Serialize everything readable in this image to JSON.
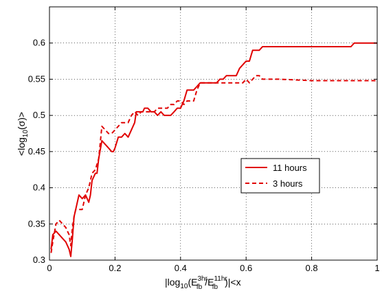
{
  "chart_data": {
    "type": "line",
    "xlabel": {
      "prefix": "|log",
      "sub1": "10",
      "open": "(E",
      "sup_num": "3hr",
      "sub_num": "fb",
      "slash": "/E",
      "sup_den": "11hr",
      "sub_den": "fb",
      "close": ")|<x"
    },
    "ylabel": {
      "prefix": "<log",
      "sub": "10",
      "rest": "(σ)>"
    },
    "xlim": [
      0,
      1
    ],
    "ylim": [
      0.3,
      0.65
    ],
    "xticks": [
      0,
      0.2,
      0.4,
      0.6,
      0.8,
      1
    ],
    "xtick_labels": [
      "0",
      "0.2",
      "0.4",
      "0.6",
      "0.8",
      "1"
    ],
    "yticks": [
      0.3,
      0.35,
      0.4,
      0.45,
      0.5,
      0.55,
      0.6
    ],
    "ytick_labels": [
      "0.3",
      "0.35",
      "0.4",
      "0.45",
      "0.5",
      "0.55",
      "0.6"
    ],
    "grid": true,
    "legend_position": "center-right",
    "series": [
      {
        "name": "11 hours",
        "style": "solid",
        "color": "#e00000",
        "x": [
          0.005,
          0.01,
          0.02,
          0.03,
          0.04,
          0.05,
          0.06,
          0.065,
          0.07,
          0.075,
          0.08,
          0.09,
          0.1,
          0.11,
          0.12,
          0.125,
          0.13,
          0.14,
          0.145,
          0.15,
          0.16,
          0.17,
          0.18,
          0.19,
          0.195,
          0.2,
          0.21,
          0.22,
          0.23,
          0.24,
          0.25,
          0.26,
          0.265,
          0.28,
          0.285,
          0.29,
          0.3,
          0.31,
          0.32,
          0.33,
          0.34,
          0.35,
          0.37,
          0.38,
          0.39,
          0.4,
          0.41,
          0.42,
          0.43,
          0.44,
          0.45,
          0.46,
          0.47,
          0.5,
          0.51,
          0.52,
          0.53,
          0.54,
          0.55,
          0.57,
          0.58,
          0.59,
          0.6,
          0.61,
          0.62,
          0.63,
          0.64,
          0.65,
          0.7,
          0.8,
          0.9,
          0.92,
          0.93,
          0.94,
          1.0
        ],
        "y": [
          0.315,
          0.335,
          0.34,
          0.335,
          0.33,
          0.325,
          0.315,
          0.305,
          0.33,
          0.36,
          0.37,
          0.39,
          0.385,
          0.39,
          0.38,
          0.39,
          0.41,
          0.42,
          0.42,
          0.44,
          0.465,
          0.46,
          0.455,
          0.45,
          0.45,
          0.455,
          0.47,
          0.47,
          0.475,
          0.47,
          0.48,
          0.49,
          0.505,
          0.505,
          0.505,
          0.51,
          0.51,
          0.505,
          0.505,
          0.5,
          0.505,
          0.5,
          0.5,
          0.505,
          0.51,
          0.51,
          0.52,
          0.535,
          0.535,
          0.535,
          0.54,
          0.545,
          0.545,
          0.545,
          0.545,
          0.55,
          0.55,
          0.555,
          0.555,
          0.555,
          0.565,
          0.57,
          0.575,
          0.575,
          0.59,
          0.59,
          0.59,
          0.595,
          0.595,
          0.595,
          0.595,
          0.595,
          0.6,
          0.6,
          0.6
        ]
      },
      {
        "name": "3 hours",
        "style": "dashed",
        "color": "#e00000",
        "x": [
          0.005,
          0.01,
          0.02,
          0.03,
          0.04,
          0.05,
          0.06,
          0.065,
          0.07,
          0.075,
          0.08,
          0.09,
          0.1,
          0.11,
          0.12,
          0.13,
          0.14,
          0.15,
          0.16,
          0.17,
          0.18,
          0.19,
          0.2,
          0.21,
          0.22,
          0.23,
          0.24,
          0.25,
          0.26,
          0.27,
          0.28,
          0.3,
          0.31,
          0.32,
          0.33,
          0.34,
          0.36,
          0.37,
          0.38,
          0.39,
          0.4,
          0.41,
          0.42,
          0.43,
          0.44,
          0.45,
          0.46,
          0.47,
          0.5,
          0.52,
          0.54,
          0.56,
          0.59,
          0.6,
          0.61,
          0.62,
          0.63,
          0.64,
          0.65,
          0.7,
          0.8,
          0.9,
          1.0
        ],
        "y": [
          0.31,
          0.325,
          0.35,
          0.355,
          0.35,
          0.345,
          0.335,
          0.32,
          0.345,
          0.36,
          0.37,
          0.37,
          0.37,
          0.39,
          0.4,
          0.42,
          0.425,
          0.44,
          0.485,
          0.48,
          0.475,
          0.475,
          0.48,
          0.485,
          0.49,
          0.49,
          0.49,
          0.5,
          0.505,
          0.5,
          0.505,
          0.505,
          0.505,
          0.505,
          0.51,
          0.51,
          0.51,
          0.515,
          0.515,
          0.52,
          0.52,
          0.515,
          0.52,
          0.52,
          0.52,
          0.535,
          0.545,
          0.545,
          0.545,
          0.545,
          0.545,
          0.545,
          0.545,
          0.55,
          0.545,
          0.55,
          0.555,
          0.555,
          0.55,
          0.55,
          0.548,
          0.548,
          0.548
        ]
      }
    ]
  }
}
